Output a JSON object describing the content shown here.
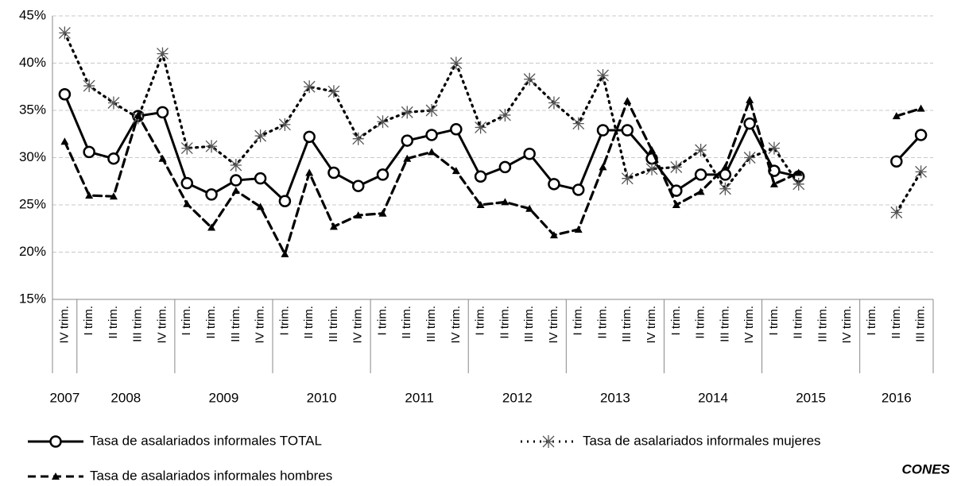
{
  "chart_data": {
    "type": "line",
    "groups": [
      {
        "label": "2007",
        "categories": [
          "IV trim."
        ]
      },
      {
        "label": "2008",
        "categories": [
          "I trim.",
          "II trim.",
          "III trim.",
          "IV trim."
        ]
      },
      {
        "label": "2009",
        "categories": [
          "I trim.",
          "II trim.",
          "III trim.",
          "IV trim."
        ]
      },
      {
        "label": "2010",
        "categories": [
          "I trim.",
          "II trim.",
          "III trim.",
          "IV trim."
        ]
      },
      {
        "label": "2011",
        "categories": [
          "I trim.",
          "II trim.",
          "III trim.",
          "IV trim."
        ]
      },
      {
        "label": "2012",
        "categories": [
          "I trim.",
          "II trim.",
          "III trim.",
          "IV trim."
        ]
      },
      {
        "label": "2013",
        "categories": [
          "I trim.",
          "II trim.",
          "III trim.",
          "IV trim."
        ]
      },
      {
        "label": "2014",
        "categories": [
          "I trim.",
          "II trim.",
          "III trim.",
          "IV trim."
        ]
      },
      {
        "label": "2015",
        "categories": [
          "I trim.",
          "II trim.",
          "III trim.",
          "IV trim."
        ]
      },
      {
        "label": "2016",
        "categories": [
          "I trim.",
          "II trim.",
          "III trim."
        ]
      }
    ],
    "series": [
      {
        "name": "Tasa de asalariados informales TOTAL",
        "color": "#000000",
        "style": "solid",
        "marker": "circle",
        "values": [
          36.7,
          30.6,
          29.9,
          34.4,
          34.8,
          27.3,
          26.1,
          27.6,
          27.8,
          25.4,
          32.2,
          28.4,
          27.0,
          28.2,
          31.8,
          32.4,
          33.0,
          28.0,
          29.0,
          30.4,
          27.2,
          26.6,
          32.9,
          32.9,
          29.9,
          26.5,
          28.2,
          28.2,
          33.6,
          28.6,
          28.0,
          null,
          null,
          null,
          29.6,
          32.4
        ]
      },
      {
        "name": "Tasa de asalariados informales mujeres",
        "color": "#000000",
        "style": "dotted",
        "marker": "asterisk",
        "values": [
          43.2,
          37.6,
          35.8,
          34.2,
          41.0,
          31.0,
          31.2,
          29.2,
          32.3,
          33.5,
          37.5,
          37.0,
          32.0,
          33.8,
          34.8,
          35.0,
          40.0,
          33.2,
          34.5,
          38.3,
          35.8,
          33.6,
          38.7,
          27.8,
          28.8,
          29.0,
          30.8,
          26.7,
          30.0,
          31.0,
          27.2,
          null,
          null,
          null,
          24.2,
          28.5
        ]
      },
      {
        "name": "Tasa de asalariados informales hombres",
        "color": "#000000",
        "style": "dashed",
        "marker": "star",
        "values": [
          31.7,
          26.0,
          25.9,
          34.5,
          29.9,
          25.1,
          22.6,
          26.5,
          24.8,
          19.8,
          28.4,
          22.7,
          23.9,
          24.1,
          29.9,
          30.6,
          28.6,
          25.0,
          25.3,
          24.6,
          21.8,
          22.4,
          29.0,
          36.0,
          30.8,
          25.0,
          26.4,
          29.0,
          36.1,
          27.2,
          28.4,
          null,
          null,
          null,
          34.4,
          35.2
        ]
      }
    ],
    "ylim": [
      15,
      45
    ],
    "yticks": [
      {
        "value": 15,
        "label": "15%"
      },
      {
        "value": 20,
        "label": "20%"
      },
      {
        "value": 25,
        "label": "25%"
      },
      {
        "value": 30,
        "label": "30%"
      },
      {
        "value": 35,
        "label": "35%"
      },
      {
        "value": 40,
        "label": "40%"
      },
      {
        "value": 45,
        "label": "45%"
      }
    ],
    "grid": true,
    "legend": "bottom",
    "source": "CONES"
  }
}
